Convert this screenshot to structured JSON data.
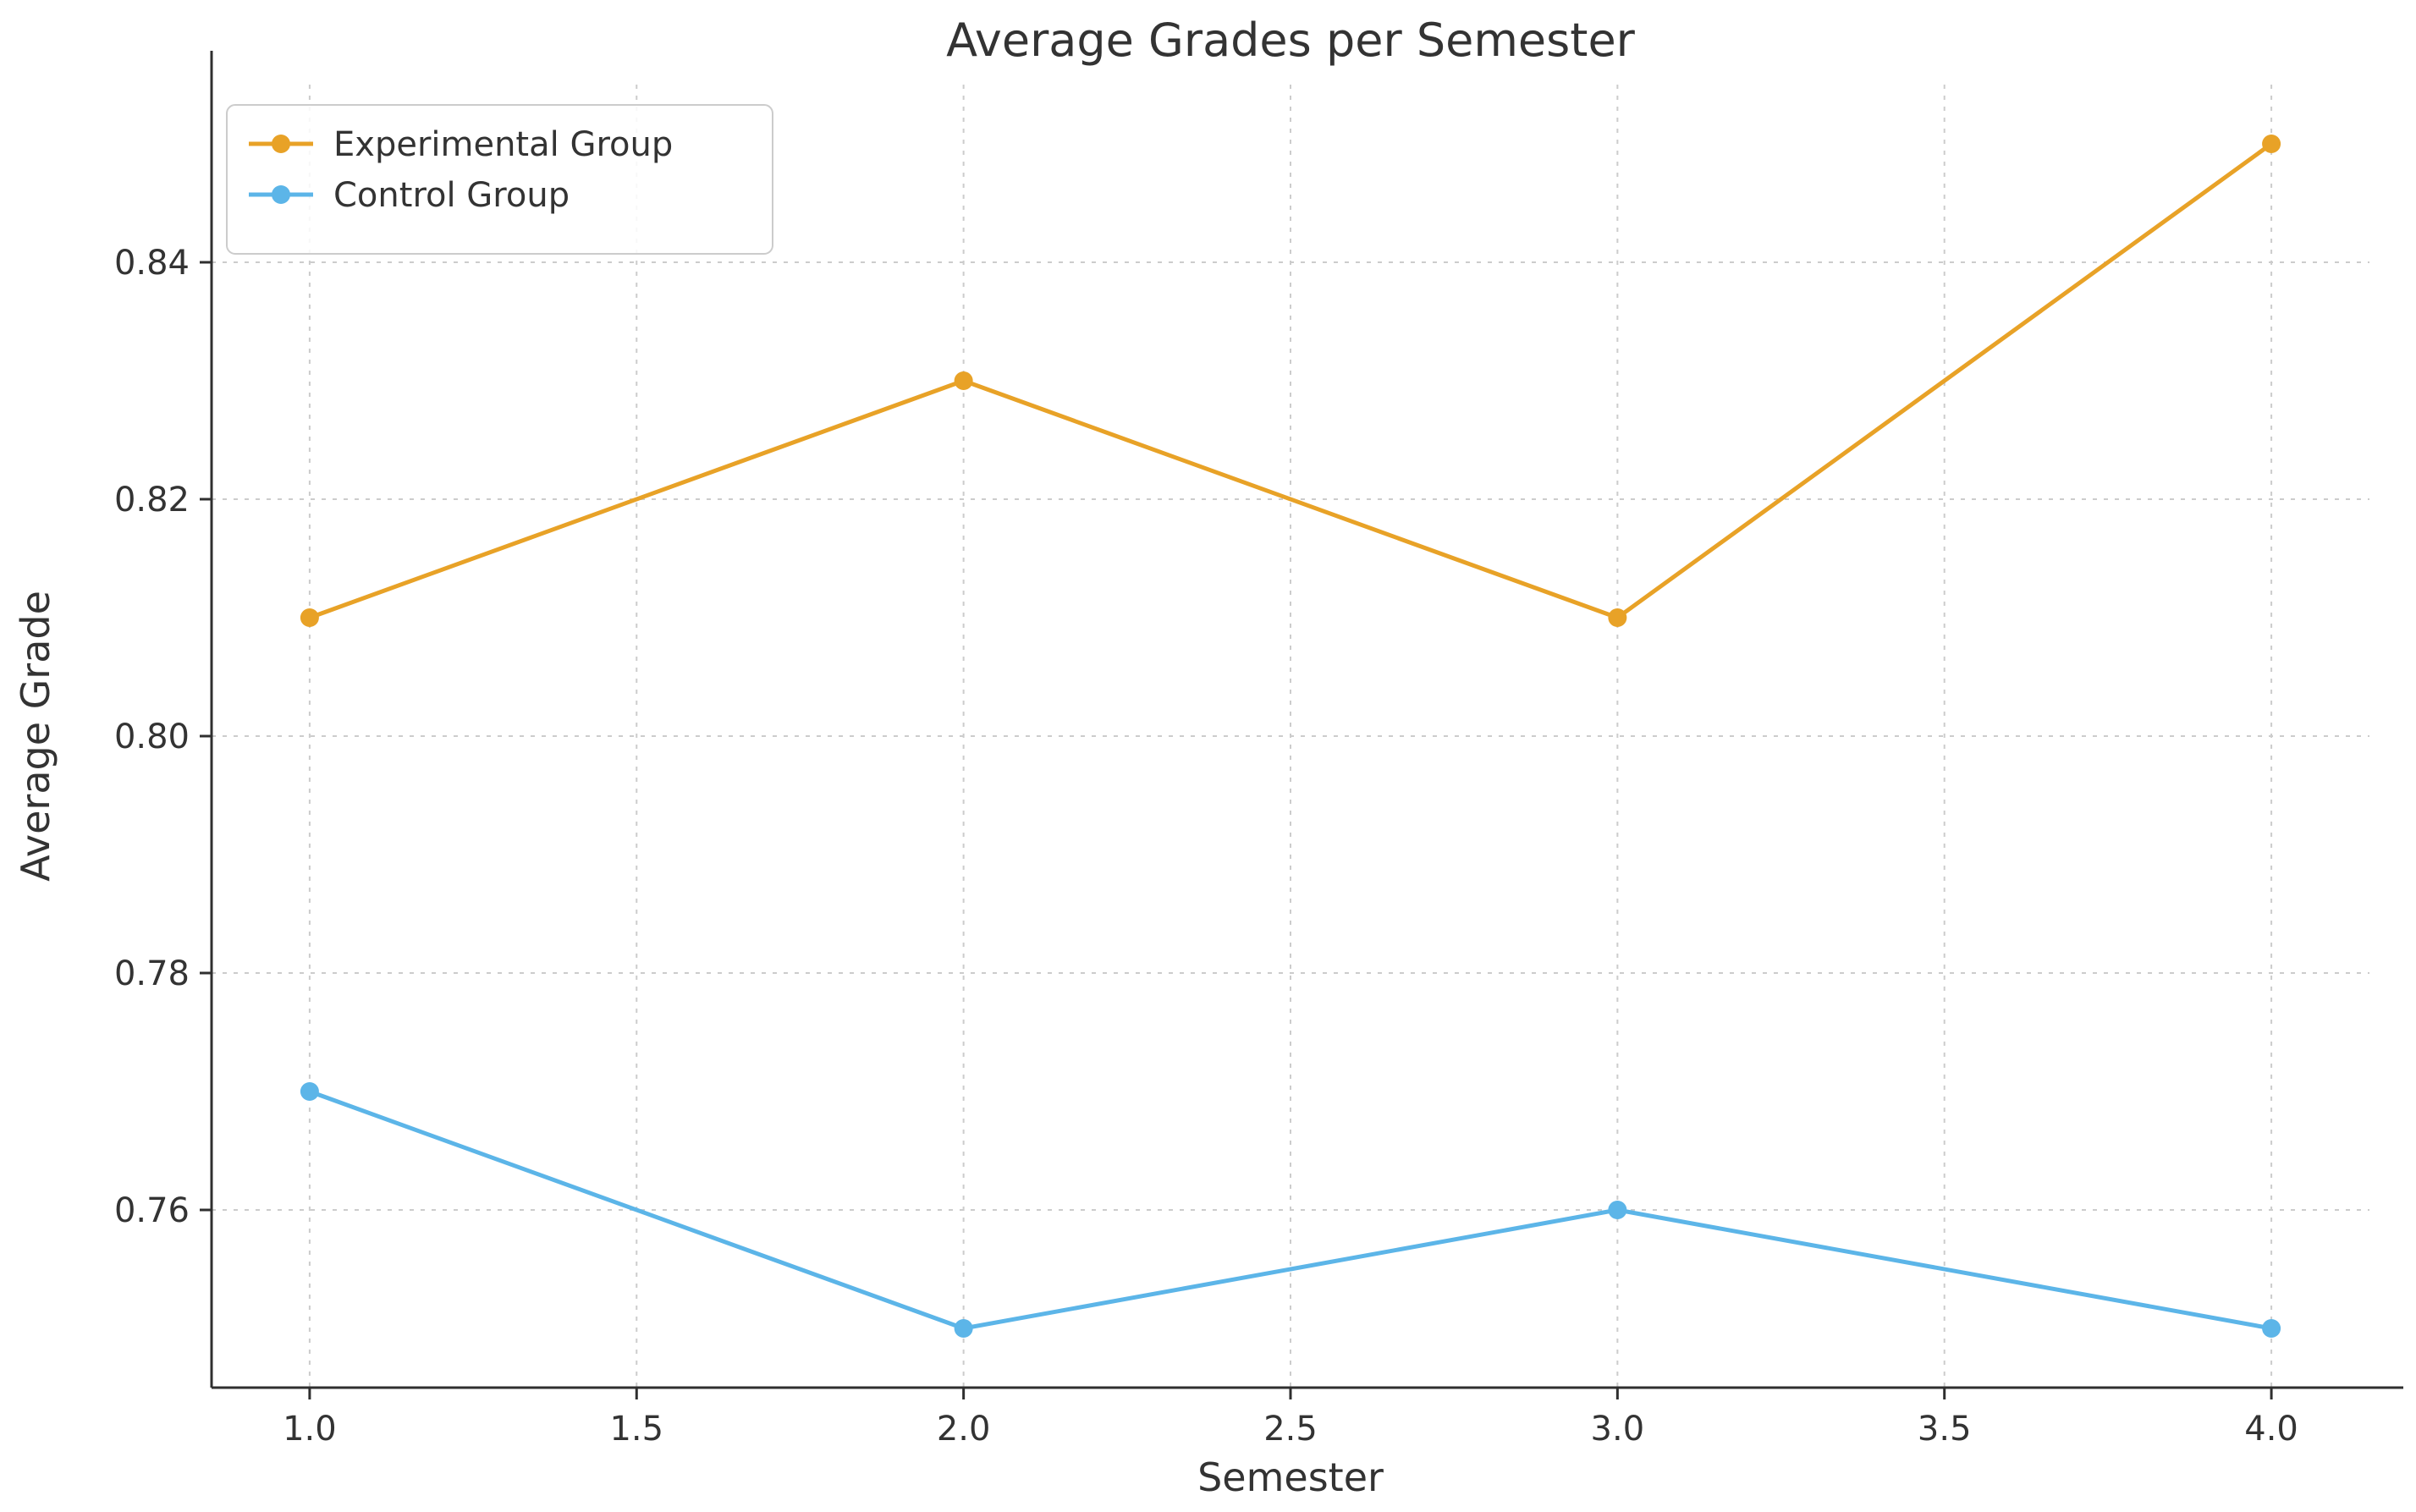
{
  "chart_data": {
    "type": "line",
    "title": "Average Grades per Semester",
    "xlabel": "Semester",
    "ylabel": "Average Grade",
    "x": [
      1,
      2,
      3,
      4
    ],
    "series": [
      {
        "name": "Experimental Group",
        "color": "#E8A227",
        "values": [
          0.81,
          0.83,
          0.81,
          0.85
        ]
      },
      {
        "name": "Control Group",
        "color": "#5CB5E8",
        "values": [
          0.77,
          0.75,
          0.76,
          0.75
        ]
      }
    ],
    "xticks": [
      1.0,
      1.5,
      2.0,
      2.5,
      3.0,
      3.5,
      4.0
    ],
    "xtick_labels": [
      "1.0",
      "1.5",
      "2.0",
      "2.5",
      "3.0",
      "3.5",
      "4.0"
    ],
    "yticks": [
      0.76,
      0.78,
      0.8,
      0.82,
      0.84
    ],
    "ytick_labels": [
      "0.76",
      "0.78",
      "0.80",
      "0.82",
      "0.84"
    ],
    "xlim": [
      0.85,
      4.15
    ],
    "ylim": [
      0.745,
      0.855
    ],
    "grid": true,
    "grid_style": "dashed",
    "legend_position": "upper left",
    "colors": {
      "text": "#333333",
      "spine": "#2f2f2f",
      "grid": "#cccccc",
      "legend_border": "#cccccc",
      "legend_bg": "rgba(255,255,255,0.85)"
    }
  }
}
